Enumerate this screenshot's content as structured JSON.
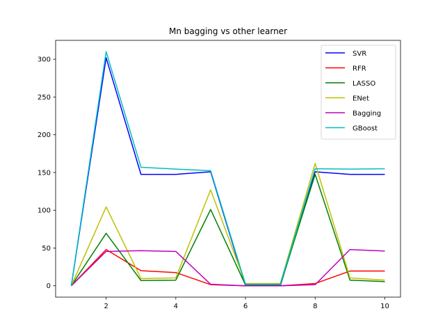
{
  "chart_data": {
    "type": "line",
    "title": "Mn bagging vs other learner",
    "xlabel": "",
    "ylabel": "",
    "xlim": [
      0.55,
      10.45
    ],
    "ylim": [
      -15,
      325
    ],
    "x_ticks": [
      2,
      4,
      6,
      8,
      10
    ],
    "y_ticks": [
      0,
      50,
      100,
      150,
      200,
      250,
      300
    ],
    "grid": false,
    "legend_position": "top-right",
    "x": [
      1,
      2,
      3,
      4,
      5,
      6,
      7,
      8,
      9,
      10
    ],
    "series": [
      {
        "name": "SVR",
        "color": "#0000ff",
        "values": [
          0,
          302,
          147.5,
          147.5,
          151,
          0,
          0,
          151,
          147.5,
          147.5
        ]
      },
      {
        "name": "RFR",
        "color": "#ff0000",
        "values": [
          0,
          48,
          20,
          17.5,
          1.5,
          0,
          0,
          3,
          19.5,
          19.5
        ]
      },
      {
        "name": "LASSO",
        "color": "#008000",
        "values": [
          0,
          69.5,
          7,
          7.5,
          101,
          1,
          1,
          147.5,
          7.5,
          5.5
        ]
      },
      {
        "name": "ENet",
        "color": "#bfbf00",
        "values": [
          0,
          104.5,
          9.5,
          10.5,
          127,
          3,
          3,
          162,
          10.5,
          7.5
        ]
      },
      {
        "name": "Bagging",
        "color": "#bf00bf",
        "values": [
          0,
          45.5,
          46.5,
          45.5,
          2,
          0,
          0,
          1.5,
          48,
          46
        ]
      },
      {
        "name": "GBoost",
        "color": "#00bfbf",
        "values": [
          0,
          310,
          157,
          154.5,
          152.5,
          2,
          2,
          155,
          154.5,
          155
        ]
      }
    ]
  }
}
